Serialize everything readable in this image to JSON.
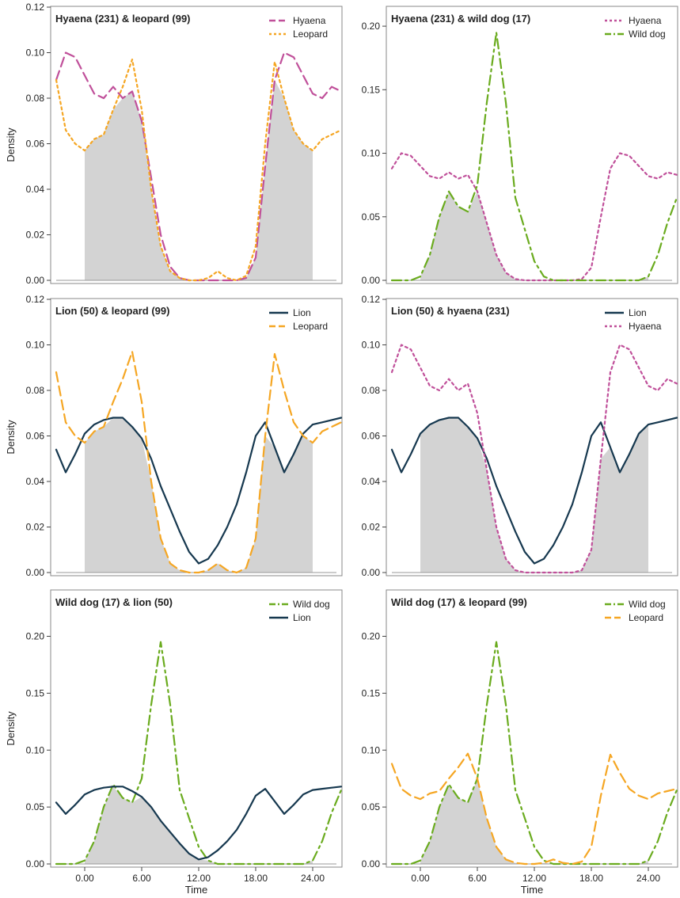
{
  "colors": {
    "hyaena": "#c0509a",
    "leopard": "#f5a623",
    "wilddog": "#6aab1e",
    "lion": "#16384f",
    "overlap": "#d3d3d3",
    "frame": "#888888"
  },
  "chart_data": [
    {
      "type": "line",
      "title": "Hyaena (231) & leopard (99)",
      "ylabel": "Density",
      "xlabel": "",
      "xlim": [
        -3.5,
        27.0
      ],
      "ylim": [
        0,
        0.12
      ],
      "yticks": [
        "0.00",
        "0.02",
        "0.04",
        "0.06",
        "0.08",
        "0.10",
        "0.12"
      ],
      "xticks": [],
      "overlap": "shaded",
      "series": [
        {
          "name": "Hyaena",
          "color": "hyaena",
          "dash": "dash",
          "x": [
            -3,
            -2,
            -1,
            0,
            1,
            2,
            3,
            4,
            5,
            6,
            7,
            8,
            9,
            10,
            11,
            12,
            13,
            14,
            15,
            16,
            17,
            18,
            19,
            20,
            21,
            22,
            23,
            24,
            25,
            26,
            27
          ],
          "y": [
            0.088,
            0.1,
            0.098,
            0.09,
            0.082,
            0.08,
            0.085,
            0.08,
            0.083,
            0.07,
            0.045,
            0.02,
            0.006,
            0.001,
            0.0,
            0.0,
            0.0,
            0.0,
            0.0,
            0.0,
            0.001,
            0.01,
            0.05,
            0.088,
            0.1,
            0.098,
            0.09,
            0.082,
            0.08,
            0.085,
            0.083
          ]
        },
        {
          "name": "Leopard",
          "color": "leopard",
          "dash": "dot",
          "x": [
            -3,
            -2,
            -1,
            0,
            1,
            2,
            3,
            4,
            5,
            6,
            7,
            8,
            9,
            10,
            11,
            12,
            13,
            14,
            15,
            16,
            17,
            18,
            19,
            20,
            21,
            22,
            23,
            24,
            25,
            26,
            27
          ],
          "y": [
            0.088,
            0.066,
            0.06,
            0.057,
            0.062,
            0.064,
            0.075,
            0.085,
            0.097,
            0.075,
            0.04,
            0.015,
            0.004,
            0.001,
            0.0,
            0.0,
            0.001,
            0.004,
            0.001,
            0.0,
            0.002,
            0.015,
            0.06,
            0.096,
            0.08,
            0.066,
            0.06,
            0.057,
            0.062,
            0.064,
            0.066
          ]
        }
      ]
    },
    {
      "type": "line",
      "title": "Hyaena (231) & wild dog (17)",
      "ylabel": "",
      "xlabel": "",
      "xlim": [
        -3.5,
        27.0
      ],
      "ylim": [
        0,
        0.215
      ],
      "yticks": [
        "0.00",
        "0.05",
        "0.10",
        "0.15",
        "0.20"
      ],
      "xticks": [],
      "overlap": "shaded",
      "series": [
        {
          "name": "Hyaena",
          "color": "hyaena",
          "dash": "dot",
          "x": [
            -3,
            -2,
            -1,
            0,
            1,
            2,
            3,
            4,
            5,
            6,
            7,
            8,
            9,
            10,
            11,
            12,
            13,
            14,
            15,
            16,
            17,
            18,
            19,
            20,
            21,
            22,
            23,
            24,
            25,
            26,
            27
          ],
          "y": [
            0.088,
            0.1,
            0.098,
            0.09,
            0.082,
            0.08,
            0.085,
            0.08,
            0.083,
            0.07,
            0.045,
            0.02,
            0.006,
            0.001,
            0.0,
            0.0,
            0.0,
            0.0,
            0.0,
            0.0,
            0.001,
            0.01,
            0.05,
            0.088,
            0.1,
            0.098,
            0.09,
            0.082,
            0.08,
            0.085,
            0.083
          ]
        },
        {
          "name": "Wild dog",
          "color": "wilddog",
          "dash": "dashdot",
          "x": [
            -3,
            -2,
            -1,
            0,
            1,
            2,
            3,
            4,
            5,
            6,
            7,
            8,
            9,
            10,
            11,
            12,
            13,
            14,
            15,
            16,
            17,
            18,
            19,
            20,
            21,
            22,
            23,
            24,
            25,
            26,
            27
          ],
          "y": [
            0.0,
            0.0,
            0.0,
            0.003,
            0.02,
            0.05,
            0.07,
            0.058,
            0.054,
            0.075,
            0.14,
            0.195,
            0.14,
            0.065,
            0.04,
            0.015,
            0.003,
            0.0,
            0.0,
            0.0,
            0.0,
            0.0,
            0.0,
            0.0,
            0.0,
            0.0,
            0.0,
            0.003,
            0.02,
            0.045,
            0.065
          ]
        }
      ]
    },
    {
      "type": "line",
      "title": "Lion (50) & leopard (99)",
      "ylabel": "Density",
      "xlabel": "",
      "xlim": [
        -3.5,
        27.0
      ],
      "ylim": [
        0,
        0.12
      ],
      "yticks": [
        "0.00",
        "0.02",
        "0.04",
        "0.06",
        "0.08",
        "0.10",
        "0.12"
      ],
      "xticks": [],
      "overlap": "shaded",
      "series": [
        {
          "name": "Lion",
          "color": "lion",
          "dash": "solid",
          "x": [
            -3,
            -2,
            -1,
            0,
            1,
            2,
            3,
            4,
            5,
            6,
            7,
            8,
            9,
            10,
            11,
            12,
            13,
            14,
            15,
            16,
            17,
            18,
            19,
            20,
            21,
            22,
            23,
            24,
            25,
            26,
            27
          ],
          "y": [
            0.054,
            0.044,
            0.052,
            0.061,
            0.065,
            0.067,
            0.068,
            0.068,
            0.064,
            0.059,
            0.05,
            0.038,
            0.028,
            0.018,
            0.009,
            0.004,
            0.006,
            0.012,
            0.02,
            0.03,
            0.044,
            0.06,
            0.066,
            0.055,
            0.044,
            0.052,
            0.061,
            0.065,
            0.066,
            0.067,
            0.068
          ]
        },
        {
          "name": "Leopard",
          "color": "leopard",
          "dash": "dash",
          "x": [
            -3,
            -2,
            -1,
            0,
            1,
            2,
            3,
            4,
            5,
            6,
            7,
            8,
            9,
            10,
            11,
            12,
            13,
            14,
            15,
            16,
            17,
            18,
            19,
            20,
            21,
            22,
            23,
            24,
            25,
            26,
            27
          ],
          "y": [
            0.088,
            0.066,
            0.06,
            0.057,
            0.062,
            0.064,
            0.075,
            0.085,
            0.097,
            0.075,
            0.04,
            0.015,
            0.004,
            0.001,
            0.0,
            0.0,
            0.001,
            0.004,
            0.001,
            0.0,
            0.002,
            0.015,
            0.06,
            0.096,
            0.08,
            0.066,
            0.06,
            0.057,
            0.062,
            0.064,
            0.066
          ]
        }
      ]
    },
    {
      "type": "line",
      "title": "Lion (50) & hyaena (231)",
      "ylabel": "",
      "xlabel": "",
      "xlim": [
        -3.5,
        27.0
      ],
      "ylim": [
        0,
        0.12
      ],
      "yticks": [
        "0.00",
        "0.02",
        "0.04",
        "0.06",
        "0.08",
        "0.10",
        "0.12"
      ],
      "xticks": [],
      "overlap": "shaded",
      "series": [
        {
          "name": "Lion",
          "color": "lion",
          "dash": "solid",
          "x": [
            -3,
            -2,
            -1,
            0,
            1,
            2,
            3,
            4,
            5,
            6,
            7,
            8,
            9,
            10,
            11,
            12,
            13,
            14,
            15,
            16,
            17,
            18,
            19,
            20,
            21,
            22,
            23,
            24,
            25,
            26,
            27
          ],
          "y": [
            0.054,
            0.044,
            0.052,
            0.061,
            0.065,
            0.067,
            0.068,
            0.068,
            0.064,
            0.059,
            0.05,
            0.038,
            0.028,
            0.018,
            0.009,
            0.004,
            0.006,
            0.012,
            0.02,
            0.03,
            0.044,
            0.06,
            0.066,
            0.055,
            0.044,
            0.052,
            0.061,
            0.065,
            0.066,
            0.067,
            0.068
          ]
        },
        {
          "name": "Hyaena",
          "color": "hyaena",
          "dash": "dot",
          "x": [
            -3,
            -2,
            -1,
            0,
            1,
            2,
            3,
            4,
            5,
            6,
            7,
            8,
            9,
            10,
            11,
            12,
            13,
            14,
            15,
            16,
            17,
            18,
            19,
            20,
            21,
            22,
            23,
            24,
            25,
            26,
            27
          ],
          "y": [
            0.088,
            0.1,
            0.098,
            0.09,
            0.082,
            0.08,
            0.085,
            0.08,
            0.083,
            0.07,
            0.045,
            0.02,
            0.006,
            0.001,
            0.0,
            0.0,
            0.0,
            0.0,
            0.0,
            0.0,
            0.001,
            0.01,
            0.05,
            0.088,
            0.1,
            0.098,
            0.09,
            0.082,
            0.08,
            0.085,
            0.083
          ]
        }
      ]
    },
    {
      "type": "line",
      "title": "Wild dog (17) & lion (50)",
      "ylabel": "Density",
      "xlabel": "Time",
      "xlim": [
        -3.5,
        27.0
      ],
      "ylim": [
        0,
        0.24
      ],
      "yticks": [
        "0.00",
        "0.05",
        "0.10",
        "0.15",
        "0.20"
      ],
      "xticks": [
        "0.00",
        "6.00",
        "12.00",
        "18.00",
        "24.00"
      ],
      "overlap": "shaded",
      "series": [
        {
          "name": "Wild dog",
          "color": "wilddog",
          "dash": "dashdot",
          "x": [
            -3,
            -2,
            -1,
            0,
            1,
            2,
            3,
            4,
            5,
            6,
            7,
            8,
            9,
            10,
            11,
            12,
            13,
            14,
            15,
            16,
            17,
            18,
            19,
            20,
            21,
            22,
            23,
            24,
            25,
            26,
            27
          ],
          "y": [
            0.0,
            0.0,
            0.0,
            0.003,
            0.02,
            0.05,
            0.07,
            0.058,
            0.054,
            0.075,
            0.14,
            0.195,
            0.14,
            0.065,
            0.04,
            0.015,
            0.003,
            0.0,
            0.0,
            0.0,
            0.0,
            0.0,
            0.0,
            0.0,
            0.0,
            0.0,
            0.0,
            0.003,
            0.02,
            0.045,
            0.065
          ]
        },
        {
          "name": "Lion",
          "color": "lion",
          "dash": "solid",
          "x": [
            -3,
            -2,
            -1,
            0,
            1,
            2,
            3,
            4,
            5,
            6,
            7,
            8,
            9,
            10,
            11,
            12,
            13,
            14,
            15,
            16,
            17,
            18,
            19,
            20,
            21,
            22,
            23,
            24,
            25,
            26,
            27
          ],
          "y": [
            0.054,
            0.044,
            0.052,
            0.061,
            0.065,
            0.067,
            0.068,
            0.068,
            0.064,
            0.059,
            0.05,
            0.038,
            0.028,
            0.018,
            0.009,
            0.004,
            0.006,
            0.012,
            0.02,
            0.03,
            0.044,
            0.06,
            0.066,
            0.055,
            0.044,
            0.052,
            0.061,
            0.065,
            0.066,
            0.067,
            0.068
          ]
        }
      ]
    },
    {
      "type": "line",
      "title": "Wild dog (17) & leopard (99)",
      "ylabel": "",
      "xlabel": "Time",
      "xlim": [
        -3.5,
        27.0
      ],
      "ylim": [
        0,
        0.24
      ],
      "yticks": [
        "0.00",
        "0.05",
        "0.10",
        "0.15",
        "0.20"
      ],
      "xticks": [
        "0.00",
        "6.00",
        "12.00",
        "18.00",
        "24.00"
      ],
      "overlap": "shaded",
      "series": [
        {
          "name": "Wild dog",
          "color": "wilddog",
          "dash": "dashdot",
          "x": [
            -3,
            -2,
            -1,
            0,
            1,
            2,
            3,
            4,
            5,
            6,
            7,
            8,
            9,
            10,
            11,
            12,
            13,
            14,
            15,
            16,
            17,
            18,
            19,
            20,
            21,
            22,
            23,
            24,
            25,
            26,
            27
          ],
          "y": [
            0.0,
            0.0,
            0.0,
            0.003,
            0.02,
            0.05,
            0.07,
            0.058,
            0.054,
            0.075,
            0.14,
            0.195,
            0.14,
            0.065,
            0.04,
            0.015,
            0.003,
            0.0,
            0.0,
            0.0,
            0.0,
            0.0,
            0.0,
            0.0,
            0.0,
            0.0,
            0.0,
            0.003,
            0.02,
            0.045,
            0.065
          ]
        },
        {
          "name": "Leopard",
          "color": "leopard",
          "dash": "dash",
          "x": [
            -3,
            -2,
            -1,
            0,
            1,
            2,
            3,
            4,
            5,
            6,
            7,
            8,
            9,
            10,
            11,
            12,
            13,
            14,
            15,
            16,
            17,
            18,
            19,
            20,
            21,
            22,
            23,
            24,
            25,
            26,
            27
          ],
          "y": [
            0.088,
            0.066,
            0.06,
            0.057,
            0.062,
            0.064,
            0.075,
            0.085,
            0.097,
            0.075,
            0.04,
            0.015,
            0.004,
            0.001,
            0.0,
            0.0,
            0.001,
            0.004,
            0.001,
            0.0,
            0.002,
            0.015,
            0.06,
            0.096,
            0.08,
            0.066,
            0.06,
            0.057,
            0.062,
            0.064,
            0.066
          ]
        }
      ]
    }
  ]
}
